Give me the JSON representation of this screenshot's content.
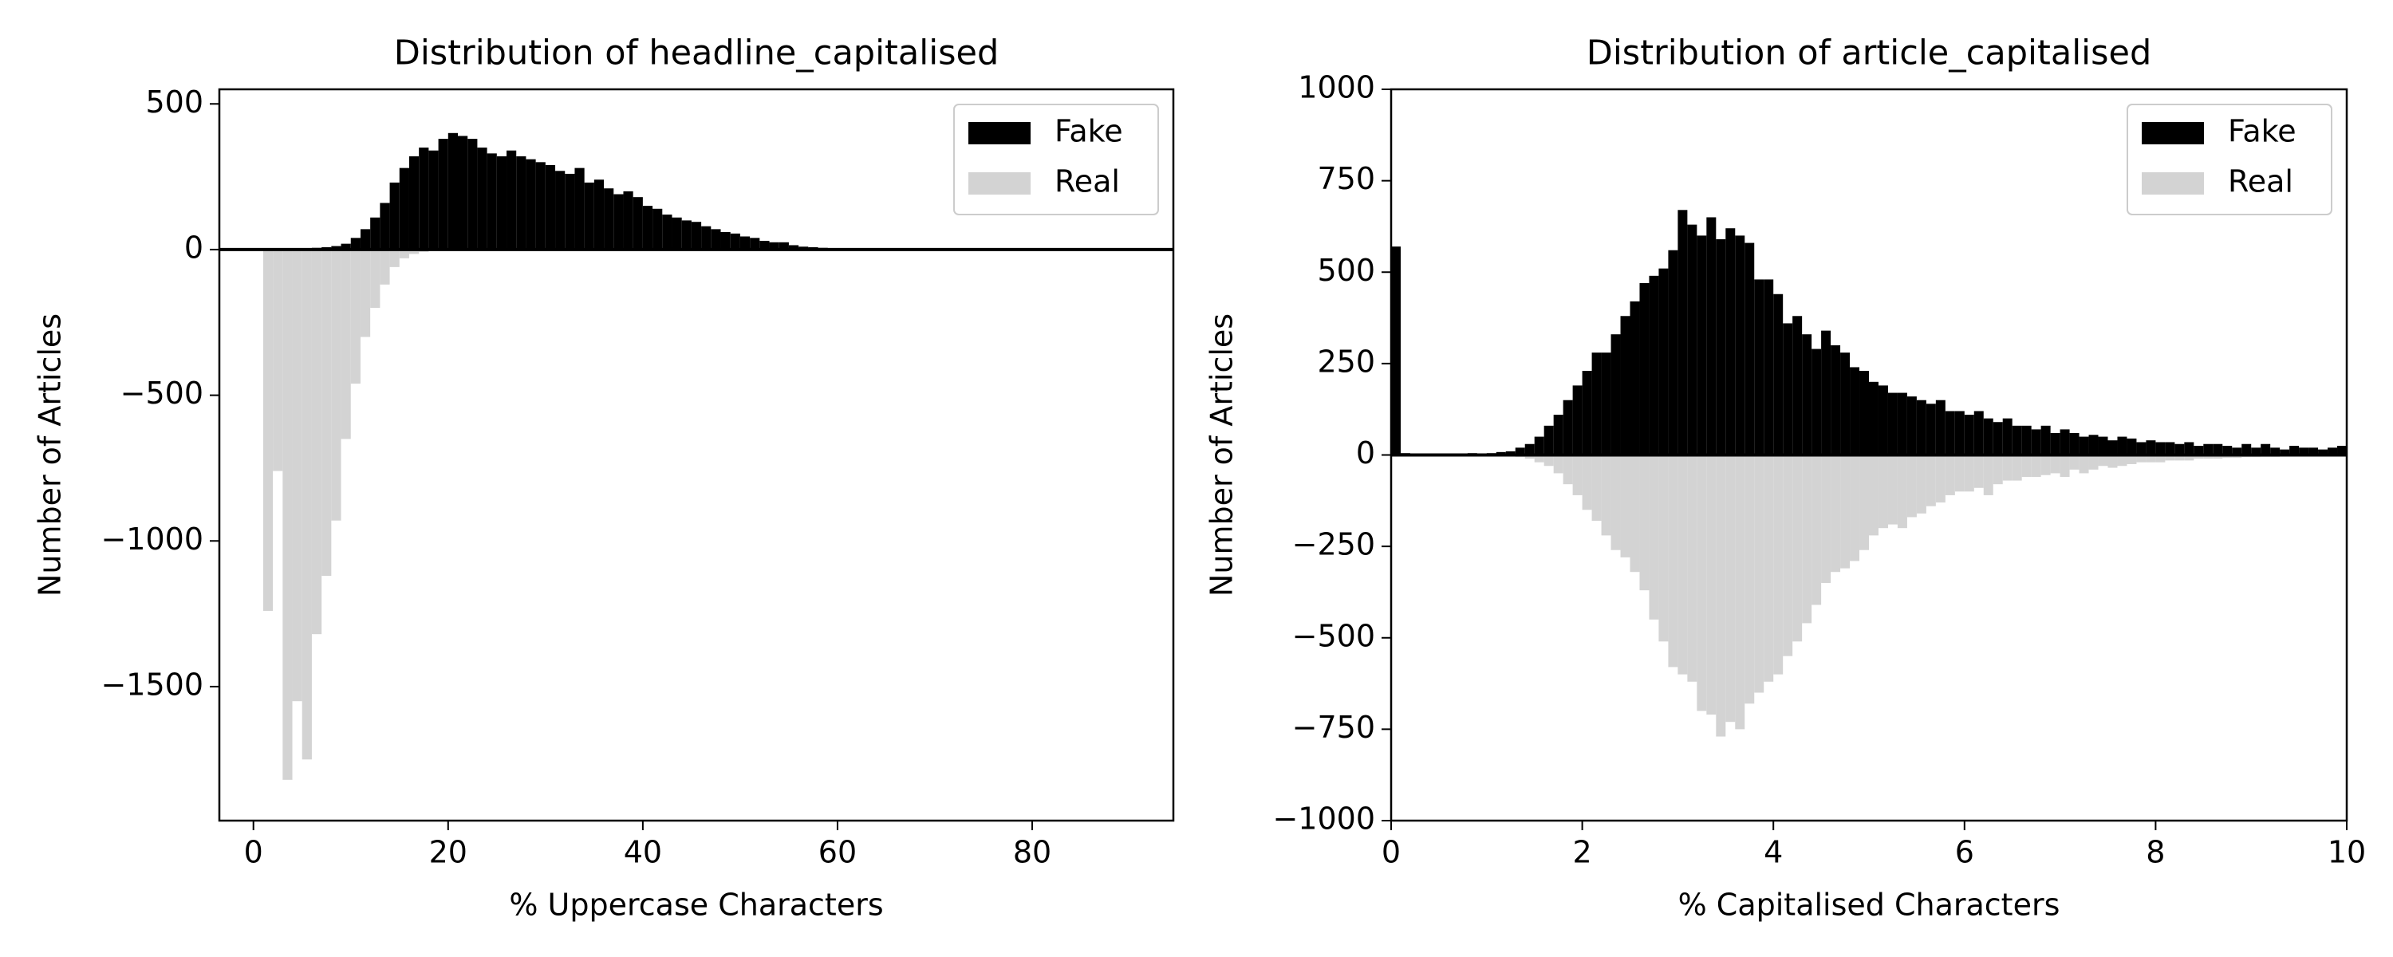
{
  "chart_data": [
    {
      "type": "histogram",
      "title": "Distribution of headline_capitalised",
      "xlabel": "% Uppercase Characters",
      "ylabel": "Number of Articles",
      "bins": [
        0,
        1,
        2,
        3,
        4,
        5,
        6,
        7,
        8,
        9,
        10,
        11,
        12,
        13,
        14,
        15,
        16,
        17,
        18,
        19,
        20,
        21,
        22,
        23,
        24,
        25,
        26,
        27,
        28,
        29,
        30,
        31,
        32,
        33,
        34,
        35,
        36,
        37,
        38,
        39,
        40,
        41,
        42,
        43,
        44,
        45,
        46,
        47,
        48,
        49,
        50,
        51,
        52,
        53,
        54,
        55,
        56,
        57,
        58,
        59,
        60,
        61,
        62,
        63,
        64,
        65,
        66,
        67,
        68,
        69,
        70
      ],
      "series": [
        {
          "name": "Fake",
          "color": "#000000",
          "values": [
            0,
            0,
            2,
            3,
            4,
            5,
            6,
            8,
            12,
            20,
            40,
            70,
            110,
            160,
            230,
            280,
            320,
            350,
            340,
            380,
            400,
            390,
            380,
            350,
            330,
            320,
            340,
            320,
            310,
            300,
            290,
            270,
            260,
            280,
            230,
            240,
            210,
            190,
            200,
            180,
            150,
            140,
            120,
            110,
            100,
            95,
            80,
            70,
            60,
            55,
            45,
            40,
            30,
            25,
            25,
            15,
            10,
            8,
            6,
            5,
            4,
            3,
            2,
            1,
            1,
            0,
            0,
            0,
            0,
            0
          ]
        },
        {
          "name": "Real",
          "color": "#d3d3d3",
          "values": [
            0,
            -1240,
            -760,
            -1820,
            -1550,
            -1750,
            -1320,
            -1120,
            -930,
            -650,
            -460,
            -300,
            -200,
            -120,
            -60,
            -30,
            -15,
            -8,
            -4,
            -2,
            0,
            0,
            0,
            0,
            0,
            0,
            0,
            0,
            0,
            0,
            0,
            0,
            0,
            0,
            0,
            0,
            0,
            0,
            0,
            0,
            0,
            0,
            0,
            0,
            0,
            0,
            0,
            0,
            0,
            0,
            0,
            0,
            0,
            0,
            0,
            0,
            0,
            0,
            0,
            0,
            0,
            0,
            0,
            0,
            0,
            0,
            0,
            0,
            0,
            0
          ]
        }
      ],
      "xlim": [
        -3.5,
        94.5
      ],
      "ylim": [
        -1960,
        550
      ],
      "xticks": [
        0,
        20,
        40,
        60,
        80
      ],
      "yticks": [
        500,
        0,
        {
          "value": -500,
          "label": "−500"
        },
        {
          "value": -1000,
          "label": "−1000"
        },
        {
          "value": -1500,
          "label": "−1500"
        }
      ],
      "legend": "upper right"
    },
    {
      "type": "histogram",
      "title": "Distribution of article_capitalised",
      "xlabel": "% Capitalised Characters",
      "ylabel": "Number of Articles",
      "bins": [
        0,
        0.1,
        0.2,
        0.3,
        0.4,
        0.5,
        0.6,
        0.7,
        0.8,
        0.9,
        1,
        1.1,
        1.2,
        1.3,
        1.4,
        1.5,
        1.6,
        1.7,
        1.8,
        1.9,
        2,
        2.1,
        2.2,
        2.3,
        2.4,
        2.5,
        2.6,
        2.7,
        2.8,
        2.9,
        3,
        3.1,
        3.2,
        3.3,
        3.4,
        3.5,
        3.6,
        3.7,
        3.8,
        3.9,
        4,
        4.1,
        4.2,
        4.3,
        4.4,
        4.5,
        4.6,
        4.7,
        4.8,
        4.9,
        5,
        5.1,
        5.2,
        5.3,
        5.4,
        5.5,
        5.6,
        5.7,
        5.8,
        5.9,
        6,
        6.1,
        6.2,
        6.3,
        6.4,
        6.5,
        6.6,
        6.7,
        6.8,
        6.9,
        7,
        7.1,
        7.2,
        7.3,
        7.4,
        7.5,
        7.6,
        7.7,
        7.8,
        7.9,
        8,
        8.1,
        8.2,
        8.3,
        8.4,
        8.5,
        8.6,
        8.7,
        8.8,
        8.9,
        9,
        9.1,
        9.2,
        9.3,
        9.4,
        9.5,
        9.6,
        9.7,
        9.8,
        9.9,
        10
      ],
      "series": [
        {
          "name": "Fake",
          "color": "#000000",
          "values": [
            570,
            5,
            3,
            4,
            3,
            4,
            3,
            4,
            5,
            4,
            5,
            8,
            10,
            20,
            30,
            50,
            80,
            110,
            150,
            190,
            230,
            280,
            280,
            330,
            380,
            420,
            470,
            490,
            510,
            560,
            670,
            630,
            600,
            650,
            590,
            620,
            600,
            580,
            480,
            480,
            440,
            360,
            380,
            330,
            290,
            340,
            300,
            280,
            240,
            230,
            200,
            190,
            170,
            170,
            160,
            150,
            140,
            150,
            120,
            120,
            110,
            120,
            100,
            90,
            100,
            80,
            80,
            70,
            80,
            60,
            70,
            60,
            50,
            55,
            50,
            40,
            50,
            45,
            35,
            40,
            35,
            35,
            30,
            35,
            25,
            30,
            30,
            25,
            20,
            30,
            20,
            30,
            20,
            15,
            25,
            20,
            20,
            15,
            20,
            25
          ]
        },
        {
          "name": "Real",
          "color": "#d3d3d3",
          "values": [
            0,
            0,
            0,
            0,
            0,
            0,
            0,
            0,
            0,
            0,
            0,
            -2,
            -3,
            -5,
            -10,
            -20,
            -30,
            -50,
            -80,
            -110,
            -150,
            -180,
            -220,
            -260,
            -280,
            -320,
            -370,
            -450,
            -510,
            -580,
            -600,
            -620,
            -700,
            -710,
            -770,
            -730,
            -750,
            -680,
            -650,
            -620,
            -600,
            -550,
            -510,
            -460,
            -410,
            -350,
            -320,
            -310,
            -290,
            -260,
            -220,
            -200,
            -190,
            -200,
            -170,
            -160,
            -140,
            -130,
            -110,
            -100,
            -100,
            -90,
            -110,
            -80,
            -70,
            -70,
            -60,
            -60,
            -55,
            -50,
            -60,
            -40,
            -50,
            -40,
            -30,
            -35,
            -30,
            -25,
            -20,
            -20,
            -20,
            -15,
            -15,
            -15,
            -10,
            -10,
            -10,
            -8,
            -8,
            -6,
            -6,
            -5,
            -5,
            -4,
            -4,
            -3,
            -3,
            -2,
            -2,
            -2
          ]
        }
      ],
      "xlim": [
        0,
        10
      ],
      "ylim": [
        -1000,
        1000
      ],
      "xticks": [
        0,
        2,
        4,
        6,
        8,
        10
      ],
      "yticks": [
        1000,
        750,
        500,
        250,
        0,
        {
          "value": -250,
          "label": "−250"
        },
        {
          "value": -500,
          "label": "−500"
        },
        {
          "value": -750,
          "label": "−750"
        },
        {
          "value": -1000,
          "label": "−1000"
        }
      ],
      "legend": "upper right"
    }
  ]
}
